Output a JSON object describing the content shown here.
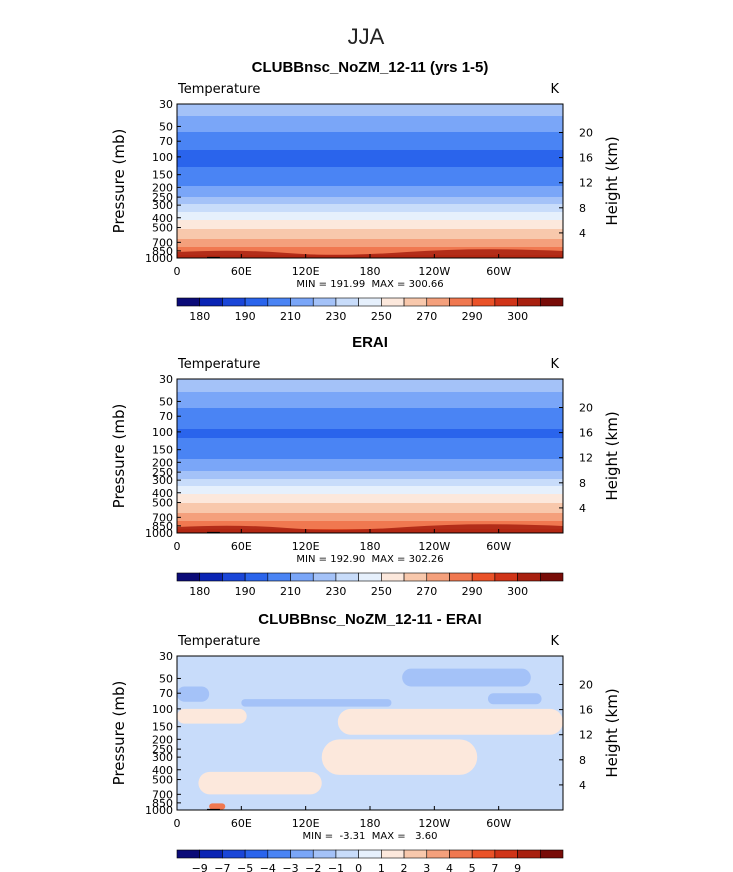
{
  "page": {
    "season": "JJA"
  },
  "palettes": {
    "abs": [
      "#0b0b78",
      "#0a24b4",
      "#1a46d8",
      "#2a64ec",
      "#4a84f4",
      "#7aa6f8",
      "#a4c2f8",
      "#c8dcfa",
      "#e6f0fc",
      "#fce8dc",
      "#f8c8ac",
      "#f4a07c",
      "#f07850",
      "#ea5228",
      "#d03418",
      "#a8200f",
      "#780c08"
    ],
    "diff": [
      "#0b0b78",
      "#0a24b4",
      "#1a46d8",
      "#2a64ec",
      "#4a84f4",
      "#7aa6f8",
      "#a4c2f8",
      "#c8dcfa",
      "#e6f0fc",
      "#fce8dc",
      "#f8c8ac",
      "#f4a07c",
      "#f07850",
      "#ea5228",
      "#d03418",
      "#a8200f",
      "#780c08"
    ]
  },
  "chart_data": [
    {
      "type": "heatmap",
      "title": "CLUBBnsc_NoZM_12-11 (yrs 1-5)",
      "variable": "Temperature",
      "units": "K",
      "xlabel": "",
      "ylabel": "Pressure (mb)",
      "ylabel_right": "Height (km)",
      "x_ticks": [
        "0",
        "60E",
        "120E",
        "180",
        "120W",
        "60W"
      ],
      "x_tick_lon": [
        0,
        60,
        120,
        180,
        240,
        300
      ],
      "xlim": [
        0,
        360
      ],
      "y_ticks": [
        "30",
        "50",
        "70",
        "100",
        "150",
        "200",
        "250",
        "300",
        "400",
        "500",
        "700",
        "850",
        "1000"
      ],
      "y_tick_p": [
        30,
        50,
        70,
        100,
        150,
        200,
        250,
        300,
        400,
        500,
        700,
        850,
        1000
      ],
      "ylim": [
        1000,
        30
      ],
      "y_scale": "log",
      "y2_ticks": [
        "20",
        "16",
        "12",
        "8",
        "4"
      ],
      "y2_tick_km": [
        20,
        16,
        12,
        8,
        4
      ],
      "stats": "MIN = 191.99  MAX = 300.66",
      "min": 191.99,
      "max": 300.66,
      "colorbar_labels": [
        "180",
        "190",
        "210",
        "230",
        "250",
        "270",
        "290",
        "300"
      ],
      "levels": [
        180,
        185,
        190,
        200,
        210,
        220,
        230,
        240,
        250,
        260,
        270,
        280,
        290,
        295,
        300
      ],
      "profile_p": [
        30,
        40,
        50,
        60,
        70,
        85,
        100,
        125,
        150,
        175,
        200,
        225,
        250,
        275,
        300,
        350,
        400,
        450,
        500,
        600,
        700,
        775,
        850,
        925,
        1000
      ],
      "profile_T": [
        226,
        219,
        213,
        208,
        205,
        200,
        199,
        200,
        203,
        207,
        212,
        216,
        221,
        226,
        232,
        241,
        248,
        254,
        259,
        267,
        275,
        280,
        285,
        290,
        296
      ]
    },
    {
      "type": "heatmap",
      "title": "ERAI",
      "variable": "Temperature",
      "units": "K",
      "xlabel": "",
      "ylabel": "Pressure (mb)",
      "ylabel_right": "Height (km)",
      "x_ticks": [
        "0",
        "60E",
        "120E",
        "180",
        "120W",
        "60W"
      ],
      "x_tick_lon": [
        0,
        60,
        120,
        180,
        240,
        300
      ],
      "xlim": [
        0,
        360
      ],
      "y_ticks": [
        "30",
        "50",
        "70",
        "100",
        "150",
        "200",
        "250",
        "300",
        "400",
        "500",
        "700",
        "850",
        "1000"
      ],
      "y_tick_p": [
        30,
        50,
        70,
        100,
        150,
        200,
        250,
        300,
        400,
        500,
        700,
        850,
        1000
      ],
      "ylim": [
        1000,
        30
      ],
      "y_scale": "log",
      "y2_ticks": [
        "20",
        "16",
        "12",
        "8",
        "4"
      ],
      "y2_tick_km": [
        20,
        16,
        12,
        8,
        4
      ],
      "stats": "MIN = 192.90  MAX = 302.26",
      "min": 192.9,
      "max": 302.26,
      "colorbar_labels": [
        "180",
        "190",
        "210",
        "230",
        "250",
        "270",
        "290",
        "300"
      ],
      "levels": [
        180,
        185,
        190,
        200,
        210,
        220,
        230,
        240,
        250,
        260,
        270,
        280,
        290,
        295,
        300
      ],
      "profile_p": [
        30,
        40,
        50,
        60,
        70,
        85,
        100,
        125,
        150,
        175,
        200,
        225,
        250,
        275,
        300,
        350,
        400,
        450,
        500,
        600,
        700,
        775,
        850,
        925,
        1000
      ],
      "profile_T": [
        227,
        220,
        214,
        209,
        205,
        201,
        199,
        201,
        204,
        208,
        213,
        217,
        222,
        227,
        233,
        242,
        249,
        255,
        260,
        268,
        276,
        281,
        286,
        291,
        297
      ]
    },
    {
      "type": "heatmap",
      "title": "CLUBBnsc_NoZM_12-11 - ERAI",
      "variable": "Temperature",
      "units": "K",
      "xlabel": "",
      "ylabel": "Pressure (mb)",
      "ylabel_right": "Height (km)",
      "x_ticks": [
        "0",
        "60E",
        "120E",
        "180",
        "120W",
        "60W"
      ],
      "x_tick_lon": [
        0,
        60,
        120,
        180,
        240,
        300
      ],
      "xlim": [
        0,
        360
      ],
      "y_ticks": [
        "30",
        "50",
        "70",
        "100",
        "150",
        "200",
        "250",
        "300",
        "400",
        "500",
        "700",
        "850",
        "1000"
      ],
      "y_tick_p": [
        30,
        50,
        70,
        100,
        150,
        200,
        250,
        300,
        400,
        500,
        700,
        850,
        1000
      ],
      "ylim": [
        1000,
        30
      ],
      "y_scale": "log",
      "y2_ticks": [
        "20",
        "16",
        "12",
        "8",
        "4"
      ],
      "y2_tick_km": [
        20,
        16,
        12,
        8,
        4
      ],
      "stats": "MIN =  -3.31  MAX =   3.60",
      "min": -3.31,
      "max": 3.6,
      "colorbar_labels": [
        "−9",
        "−7",
        "−5",
        "−4",
        "−3",
        "−2",
        "−1",
        "0",
        "1",
        "2",
        "3",
        "4",
        "5",
        "7",
        "9"
      ],
      "levels": [
        -9,
        -8,
        -7,
        -6,
        -5,
        -4,
        -3,
        -2,
        -1,
        0,
        1,
        2,
        3,
        4,
        5,
        6,
        7,
        8,
        9
      ],
      "background_level": "-1 to 0",
      "regions": [
        {
          "lon": [
            0,
            30
          ],
          "p": [
            60,
            85
          ],
          "value": -1.5
        },
        {
          "lon": [
            60,
            200
          ],
          "p": [
            80,
            95
          ],
          "value": -1.5
        },
        {
          "lon": [
            210,
            330
          ],
          "p": [
            40,
            60
          ],
          "value": -1.5
        },
        {
          "lon": [
            290,
            340
          ],
          "p": [
            70,
            90
          ],
          "value": -1.5
        },
        {
          "lon": [
            0,
            65
          ],
          "p": [
            100,
            140
          ],
          "value": 0.5
        },
        {
          "lon": [
            150,
            360
          ],
          "p": [
            100,
            180
          ],
          "value": 0.5
        },
        {
          "lon": [
            135,
            280
          ],
          "p": [
            200,
            450
          ],
          "value": 0.5
        },
        {
          "lon": [
            20,
            135
          ],
          "p": [
            420,
            700
          ],
          "value": 0.5
        },
        {
          "lon": [
            30,
            45
          ],
          "p": [
            860,
            990
          ],
          "value": 3.0
        }
      ]
    }
  ]
}
